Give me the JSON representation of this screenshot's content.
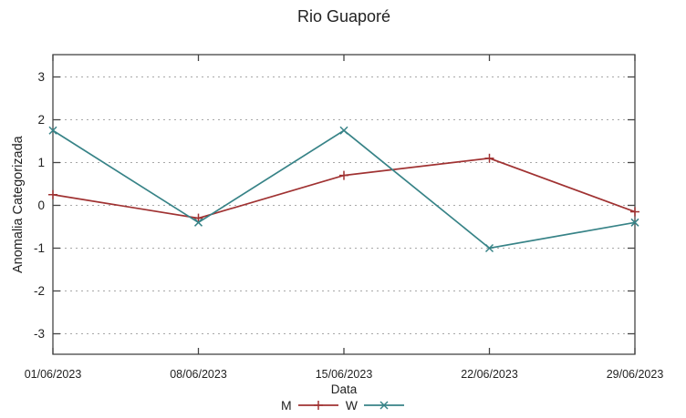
{
  "chart_data": {
    "type": "line",
    "title": "Rio Guaporé",
    "xlabel": "Data",
    "ylabel": "Anomalia Categorizada",
    "categories": [
      "01/06/2023",
      "08/06/2023",
      "15/06/2023",
      "22/06/2023",
      "29/06/2023"
    ],
    "yticks": [
      3,
      2,
      1,
      0,
      -1,
      -2,
      -3
    ],
    "ylim": [
      -3.5,
      3.5
    ],
    "grid": "horizontal-dashed",
    "legend_position": "below-xlabel",
    "series": [
      {
        "name": "M",
        "color": "#a03232",
        "marker": "plus",
        "values": [
          0.25,
          -0.3,
          0.7,
          1.1,
          -0.15
        ]
      },
      {
        "name": "W",
        "color": "#378387",
        "marker": "x",
        "values": [
          1.75,
          -0.4,
          1.75,
          -1.0,
          -0.4
        ]
      }
    ]
  },
  "style_colors": {
    "axis_border": "#444444",
    "grid_line": "#a8a8a8",
    "tick_text": "#222222"
  }
}
